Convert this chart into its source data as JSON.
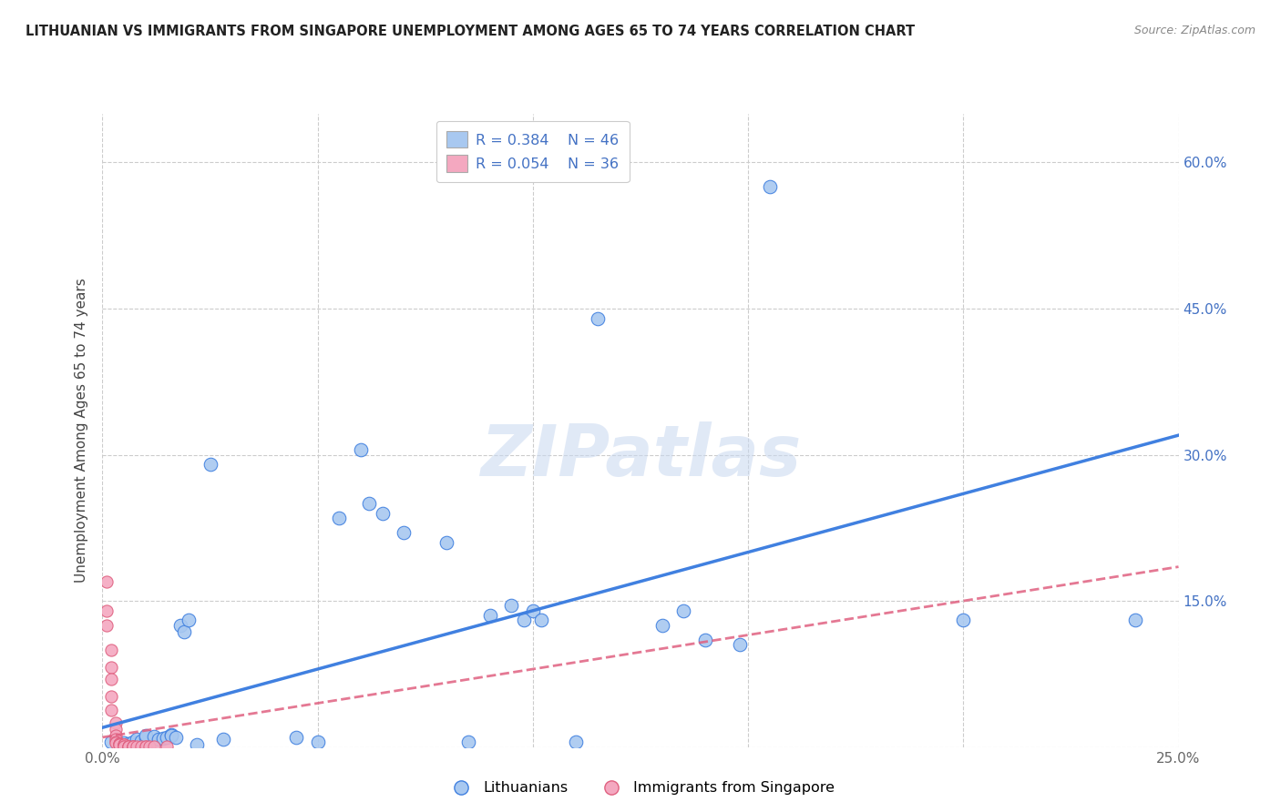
{
  "title": "LITHUANIAN VS IMMIGRANTS FROM SINGAPORE UNEMPLOYMENT AMONG AGES 65 TO 74 YEARS CORRELATION CHART",
  "source": "Source: ZipAtlas.com",
  "ylabel": "Unemployment Among Ages 65 to 74 years",
  "xlim": [
    0.0,
    0.25
  ],
  "ylim": [
    0.0,
    0.65
  ],
  "xticks": [
    0.0,
    0.05,
    0.1,
    0.15,
    0.2,
    0.25
  ],
  "yticks": [
    0.0,
    0.15,
    0.3,
    0.45,
    0.6
  ],
  "xticklabels": [
    "0.0%",
    "",
    "",
    "",
    "",
    "25.0%"
  ],
  "yticklabels_right": [
    "",
    "15.0%",
    "30.0%",
    "45.0%",
    "60.0%"
  ],
  "watermark": "ZIPatlas",
  "legend_R1": "R = 0.384",
  "legend_N1": "N = 46",
  "legend_R2": "R = 0.054",
  "legend_N2": "N = 36",
  "legend_label1": "Lithuanians",
  "legend_label2": "Immigrants from Singapore",
  "blue_color": "#A8C8F0",
  "pink_color": "#F4A8C0",
  "line_blue": "#4080E0",
  "line_pink": "#E06080",
  "scatter_blue": [
    [
      0.002,
      0.005
    ],
    [
      0.004,
      0.003
    ],
    [
      0.005,
      0.004
    ],
    [
      0.006,
      0.003
    ],
    [
      0.007,
      0.005
    ],
    [
      0.008,
      0.003
    ],
    [
      0.008,
      0.008
    ],
    [
      0.009,
      0.006
    ],
    [
      0.01,
      0.01
    ],
    [
      0.01,
      0.012
    ],
    [
      0.012,
      0.011
    ],
    [
      0.013,
      0.008
    ],
    [
      0.014,
      0.009
    ],
    [
      0.015,
      0.01
    ],
    [
      0.016,
      0.013
    ],
    [
      0.016,
      0.012
    ],
    [
      0.017,
      0.01
    ],
    [
      0.018,
      0.125
    ],
    [
      0.019,
      0.118
    ],
    [
      0.02,
      0.13
    ],
    [
      0.022,
      0.002
    ],
    [
      0.025,
      0.29
    ],
    [
      0.028,
      0.008
    ],
    [
      0.045,
      0.01
    ],
    [
      0.05,
      0.005
    ],
    [
      0.055,
      0.235
    ],
    [
      0.06,
      0.305
    ],
    [
      0.062,
      0.25
    ],
    [
      0.065,
      0.24
    ],
    [
      0.07,
      0.22
    ],
    [
      0.08,
      0.21
    ],
    [
      0.085,
      0.005
    ],
    [
      0.09,
      0.135
    ],
    [
      0.095,
      0.145
    ],
    [
      0.098,
      0.13
    ],
    [
      0.1,
      0.14
    ],
    [
      0.102,
      0.13
    ],
    [
      0.11,
      0.005
    ],
    [
      0.115,
      0.44
    ],
    [
      0.13,
      0.125
    ],
    [
      0.135,
      0.14
    ],
    [
      0.14,
      0.11
    ],
    [
      0.148,
      0.105
    ],
    [
      0.155,
      0.575
    ],
    [
      0.2,
      0.13
    ],
    [
      0.24,
      0.13
    ]
  ],
  "scatter_pink": [
    [
      0.001,
      0.17
    ],
    [
      0.001,
      0.14
    ],
    [
      0.001,
      0.125
    ],
    [
      0.002,
      0.1
    ],
    [
      0.002,
      0.082
    ],
    [
      0.002,
      0.07
    ],
    [
      0.002,
      0.052
    ],
    [
      0.002,
      0.038
    ],
    [
      0.003,
      0.025
    ],
    [
      0.003,
      0.018
    ],
    [
      0.003,
      0.012
    ],
    [
      0.003,
      0.008
    ],
    [
      0.003,
      0.005
    ],
    [
      0.003,
      0.004
    ],
    [
      0.004,
      0.003
    ],
    [
      0.004,
      0.003
    ],
    [
      0.004,
      0.002
    ],
    [
      0.004,
      0.002
    ],
    [
      0.005,
      0.002
    ],
    [
      0.005,
      0.002
    ],
    [
      0.005,
      0.002
    ],
    [
      0.005,
      0.001
    ],
    [
      0.005,
      0.001
    ],
    [
      0.006,
      0.001
    ],
    [
      0.006,
      0.001
    ],
    [
      0.006,
      0.001
    ],
    [
      0.007,
      0.001
    ],
    [
      0.007,
      0.001
    ],
    [
      0.007,
      0.001
    ],
    [
      0.008,
      0.001
    ],
    [
      0.009,
      0.001
    ],
    [
      0.01,
      0.001
    ],
    [
      0.01,
      0.001
    ],
    [
      0.011,
      0.001
    ],
    [
      0.012,
      0.001
    ],
    [
      0.015,
      0.001
    ]
  ],
  "blue_line_x": [
    0.0,
    0.25
  ],
  "blue_line_y": [
    0.02,
    0.32
  ],
  "pink_line_x": [
    0.0,
    0.25
  ],
  "pink_line_y": [
    0.01,
    0.185
  ]
}
